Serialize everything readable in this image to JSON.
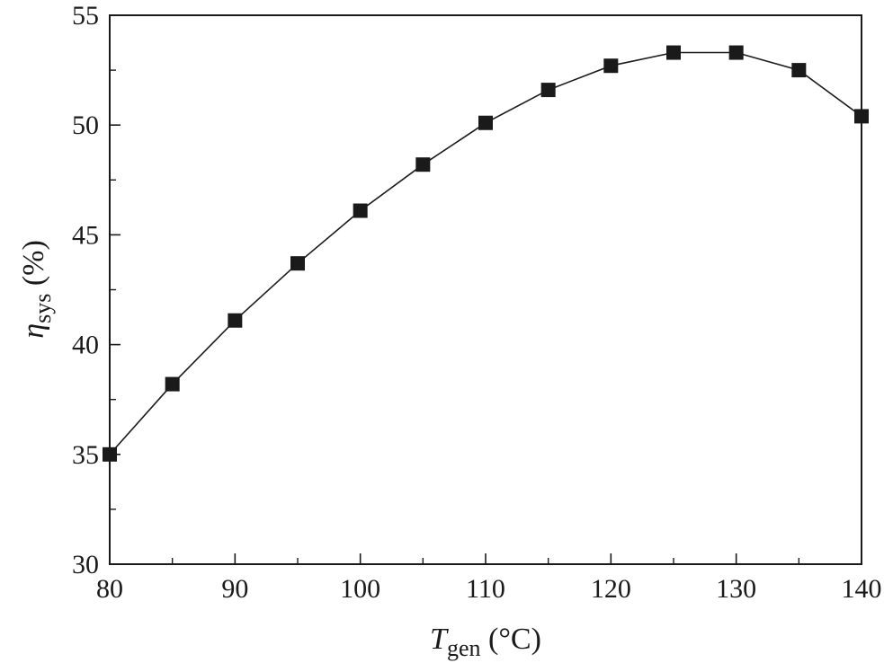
{
  "chart_data": {
    "type": "line",
    "title": "",
    "xlabel": {
      "symbol": "T",
      "subscript": "gen",
      "unit": " (°C)"
    },
    "ylabel": {
      "symbol": "η",
      "subscript": "sys",
      "unit": " (%)"
    },
    "xlim": [
      80,
      140
    ],
    "ylim": [
      30,
      55
    ],
    "xticks": [
      80,
      90,
      100,
      110,
      120,
      130,
      140
    ],
    "yticks": [
      30,
      35,
      40,
      45,
      50,
      55
    ],
    "xminor": [
      85,
      95,
      105,
      115,
      125,
      135
    ],
    "yminor": [
      32.5,
      37.5,
      42.5,
      47.5,
      52.5
    ],
    "grid": false,
    "marker": "square",
    "color": "#1a1a1a",
    "series": [
      {
        "x": [
          80,
          85,
          90,
          95,
          100,
          105,
          110,
          115,
          120,
          125,
          130,
          135,
          140
        ],
        "y": [
          35.0,
          38.2,
          41.1,
          43.7,
          46.1,
          48.2,
          50.1,
          51.6,
          52.7,
          53.3,
          53.3,
          52.5,
          50.4
        ]
      }
    ]
  }
}
